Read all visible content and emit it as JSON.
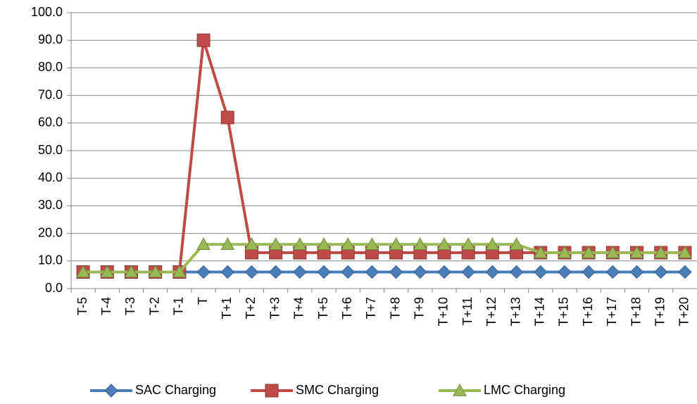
{
  "chart_data": {
    "type": "line",
    "categories": [
      "T-5",
      "T-4",
      "T-3",
      "T-2",
      "T-1",
      "T",
      "T+1",
      "T+2",
      "T+3",
      "T+4",
      "T+5",
      "T+6",
      "T+7",
      "T+8",
      "T+9",
      "T+10",
      "T+11",
      "T+12",
      "T+13",
      "T+14",
      "T+15",
      "T+16",
      "T+17",
      "T+18",
      "T+19",
      "T+20"
    ],
    "series": [
      {
        "name": "SAC Charging",
        "color": "#4a7ebb",
        "marker": "diamond",
        "values": [
          6,
          6,
          6,
          6,
          6,
          6,
          6,
          6,
          6,
          6,
          6,
          6,
          6,
          6,
          6,
          6,
          6,
          6,
          6,
          6,
          6,
          6,
          6,
          6,
          6,
          6
        ]
      },
      {
        "name": "SMC Charging",
        "color": "#be4b48",
        "marker": "square",
        "values": [
          6,
          6,
          6,
          6,
          6,
          90,
          62,
          13,
          13,
          13,
          13,
          13,
          13,
          13,
          13,
          13,
          13,
          13,
          13,
          13,
          13,
          13,
          13,
          13,
          13,
          13
        ]
      },
      {
        "name": "LMC Charging",
        "color": "#98b954",
        "marker": "triangle",
        "values": [
          6,
          6,
          6,
          6,
          6,
          16,
          16,
          16,
          16,
          16,
          16,
          16,
          16,
          16,
          16,
          16,
          16,
          16,
          16,
          13,
          13,
          13,
          13,
          13,
          13,
          13
        ]
      }
    ],
    "ylim": [
      0,
      100
    ],
    "yticks": [
      {
        "value": 0,
        "label": "0.0"
      },
      {
        "value": 10,
        "label": "10.0"
      },
      {
        "value": 20,
        "label": "20.0"
      },
      {
        "value": 30,
        "label": "30.0"
      },
      {
        "value": 40,
        "label": "40.0"
      },
      {
        "value": 50,
        "label": "50.0"
      },
      {
        "value": 60,
        "label": "60.0"
      },
      {
        "value": 70,
        "label": "70.0"
      },
      {
        "value": 80,
        "label": "80.0"
      },
      {
        "value": 90,
        "label": "90.0"
      },
      {
        "value": 100,
        "label": "100.0"
      }
    ],
    "grid": true,
    "legend": "bottom"
  }
}
